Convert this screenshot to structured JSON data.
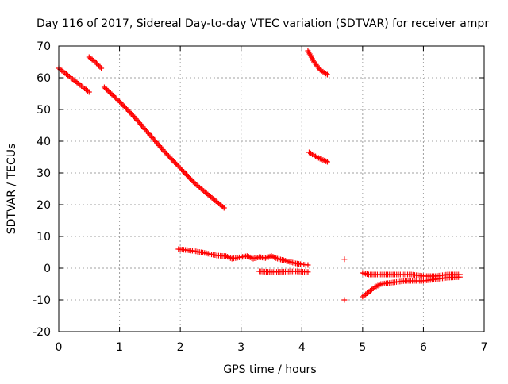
{
  "chart_data": {
    "type": "scatter",
    "title": "Day 116 of 2017, Sidereal Day-to-day VTEC variation (SDTVAR) for receiver ampr",
    "xlabel": "GPS time / hours",
    "ylabel": "SDTVAR / TECUs",
    "xlim": [
      0,
      7
    ],
    "ylim": [
      -20,
      70
    ],
    "x_ticks": [
      0,
      1,
      2,
      3,
      4,
      5,
      6,
      7
    ],
    "y_ticks": [
      -20,
      -10,
      0,
      10,
      20,
      30,
      40,
      50,
      60,
      70
    ],
    "x_tick_labels": [
      "0",
      "1",
      "2",
      "3",
      "4",
      "5",
      "6",
      "7"
    ],
    "y_tick_labels": [
      "-20",
      "-10",
      "0",
      "10",
      "20",
      "30",
      "40",
      "50",
      "60",
      "70"
    ],
    "grid": true,
    "grid_style": "dotted",
    "marker": "plus",
    "marker_color": "#ff0000",
    "series": [
      {
        "color": "#ff0000",
        "segments": [
          {
            "x": [
              0.0,
              0.1,
              0.2,
              0.3,
              0.4,
              0.5
            ],
            "y": [
              63.0,
              61.5,
              60.0,
              58.5,
              57.0,
              55.5
            ]
          },
          {
            "x": [
              0.5,
              0.6,
              0.7
            ],
            "y": [
              66.5,
              65.0,
              63.0
            ]
          },
          {
            "x": [
              0.75,
              1.0,
              1.25,
              1.5,
              1.75,
              2.0,
              2.25,
              2.5,
              2.72
            ],
            "y": [
              57.0,
              52.5,
              47.5,
              42.0,
              36.5,
              31.5,
              26.5,
              22.5,
              19.0
            ]
          },
          {
            "x": [
              1.97,
              2.2,
              2.4,
              2.6,
              2.75,
              2.85,
              3.0,
              3.1,
              3.2,
              3.3,
              3.4,
              3.5,
              3.6,
              3.7,
              3.8,
              3.9,
              4.0,
              4.1
            ],
            "y": [
              6.0,
              5.5,
              4.8,
              4.0,
              3.8,
              3.0,
              3.5,
              3.8,
              3.0,
              3.5,
              3.2,
              3.8,
              3.0,
              2.5,
              2.0,
              1.5,
              1.2,
              1.0
            ]
          },
          {
            "x": [
              3.3,
              3.5,
              3.7,
              3.9,
              4.1
            ],
            "y": [
              -1.0,
              -1.2,
              -1.1,
              -1.0,
              -1.2
            ]
          },
          {
            "x": [
              4.1,
              4.2,
              4.3,
              4.42
            ],
            "y": [
              68.5,
              65.0,
              62.5,
              61.0
            ]
          },
          {
            "x": [
              4.12,
              4.2,
              4.3,
              4.42
            ],
            "y": [
              36.5,
              35.5,
              34.5,
              33.5
            ]
          },
          {
            "x": [
              4.7
            ],
            "y": [
              2.8
            ]
          },
          {
            "x": [
              4.7
            ],
            "y": [
              -10.0
            ]
          },
          {
            "x": [
              5.0,
              5.1,
              5.3,
              5.5,
              5.8,
              6.0,
              6.2,
              6.4,
              6.6
            ],
            "y": [
              -1.5,
              -2.0,
              -2.0,
              -2.0,
              -2.0,
              -2.5,
              -2.5,
              -2.0,
              -2.0
            ]
          },
          {
            "x": [
              5.0,
              5.1,
              5.2,
              5.3,
              5.5,
              5.7,
              6.0,
              6.2,
              6.4,
              6.6
            ],
            "y": [
              -9.0,
              -7.5,
              -6.0,
              -5.0,
              -4.5,
              -4.0,
              -4.0,
              -3.5,
              -3.0,
              -2.8
            ]
          }
        ]
      }
    ]
  }
}
